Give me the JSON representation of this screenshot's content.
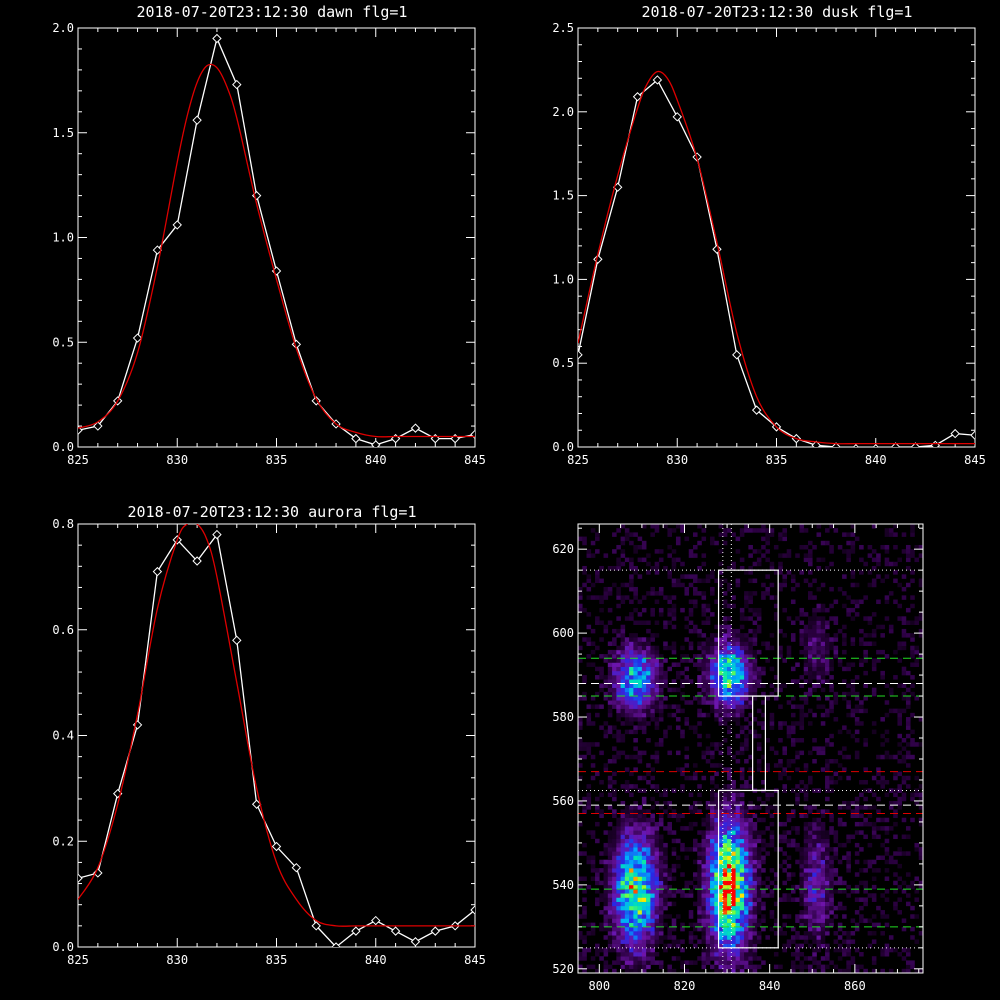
{
  "colors": {
    "background": "#000000",
    "axes": "#ffffff",
    "data": "#ffffff",
    "fit": "#dd0000"
  },
  "chart_data": [
    {
      "type": "line",
      "title": "2018-07-20T23:12:30 dawn flg=1",
      "xlim": [
        825,
        845
      ],
      "ylim": [
        0,
        2.0
      ],
      "xticks": [
        "825",
        "830",
        "835",
        "840",
        "845"
      ],
      "yticks": [
        "0.0",
        "0.5",
        "1.0",
        "1.5",
        "2.0"
      ],
      "ytick_values": [
        0,
        0.5,
        1.0,
        1.5,
        2.0
      ],
      "series": [
        {
          "marker": "diamond",
          "color": "#ffffff",
          "x": [
            825,
            826,
            827,
            828,
            829,
            830,
            831,
            832,
            833,
            834,
            835,
            836,
            837,
            838,
            839,
            840,
            841,
            842,
            843,
            844,
            845
          ],
          "y": [
            0.08,
            0.1,
            0.22,
            0.52,
            0.94,
            1.06,
            1.56,
            1.95,
            1.73,
            1.2,
            0.84,
            0.49,
            0.22,
            0.11,
            0.04,
            0.01,
            0.04,
            0.09,
            0.04,
            0.04,
            0.06
          ]
        },
        {
          "marker": "none",
          "color": "#dd0000",
          "x": [
            825,
            826,
            827,
            828,
            829,
            830,
            830.5,
            831,
            831.5,
            832,
            832.5,
            833,
            834,
            835,
            836,
            837,
            838,
            839,
            840,
            841,
            842,
            843,
            844,
            845
          ],
          "y": [
            0.09,
            0.12,
            0.22,
            0.45,
            0.86,
            1.36,
            1.58,
            1.74,
            1.82,
            1.81,
            1.72,
            1.57,
            1.16,
            0.8,
            0.47,
            0.23,
            0.11,
            0.07,
            0.05,
            0.05,
            0.05,
            0.05,
            0.05,
            0.05
          ]
        }
      ]
    },
    {
      "type": "line",
      "title": "2018-07-20T23:12:30 dusk flg=1",
      "xlim": [
        825,
        845
      ],
      "ylim": [
        0,
        2.5
      ],
      "xticks": [
        "825",
        "830",
        "835",
        "840",
        "845"
      ],
      "yticks": [
        "0.0",
        "0.5",
        "1.0",
        "1.5",
        "2.0",
        "2.5"
      ],
      "ytick_values": [
        0,
        0.5,
        1.0,
        1.5,
        2.0,
        2.5
      ],
      "series": [
        {
          "marker": "diamond",
          "color": "#ffffff",
          "x": [
            825,
            826,
            827,
            828,
            829,
            830,
            831,
            832,
            833,
            834,
            835,
            836,
            837,
            838,
            839,
            840,
            841,
            842,
            843,
            844,
            845
          ],
          "y": [
            0.55,
            1.12,
            1.55,
            2.09,
            2.19,
            1.97,
            1.73,
            1.18,
            0.55,
            0.22,
            0.12,
            0.05,
            0.01,
            0.0,
            -0.01,
            -0.01,
            0.0,
            0.0,
            0.01,
            0.08,
            0.07
          ]
        },
        {
          "marker": "none",
          "color": "#dd0000",
          "x": [
            825,
            826,
            827,
            828,
            828.5,
            829,
            829.5,
            830,
            831,
            832,
            833,
            834,
            835,
            836,
            837,
            838,
            839,
            840,
            841,
            842,
            843,
            844,
            845
          ],
          "y": [
            0.62,
            1.15,
            1.62,
            2.02,
            2.17,
            2.24,
            2.2,
            2.07,
            1.72,
            1.22,
            0.68,
            0.3,
            0.12,
            0.05,
            0.03,
            0.02,
            0.02,
            0.02,
            0.02,
            0.02,
            0.02,
            0.02,
            0.02
          ]
        }
      ]
    },
    {
      "type": "line",
      "title": "2018-07-20T23:12:30 aurora flg=1",
      "xlim": [
        825,
        845
      ],
      "ylim": [
        0,
        0.8
      ],
      "xticks": [
        "825",
        "830",
        "835",
        "840",
        "845"
      ],
      "yticks": [
        "0.0",
        "0.2",
        "0.4",
        "0.6",
        "0.8"
      ],
      "ytick_values": [
        0,
        0.2,
        0.4,
        0.6,
        0.8
      ],
      "series": [
        {
          "marker": "diamond",
          "color": "#ffffff",
          "x": [
            825,
            826,
            827,
            828,
            829,
            830,
            831,
            832,
            833,
            834,
            835,
            836,
            837,
            838,
            839,
            840,
            841,
            842,
            843,
            844,
            845
          ],
          "y": [
            0.13,
            0.14,
            0.29,
            0.42,
            0.71,
            0.77,
            0.73,
            0.78,
            0.58,
            0.27,
            0.19,
            0.15,
            0.04,
            0.0,
            0.03,
            0.05,
            0.03,
            0.01,
            0.03,
            0.04,
            0.07
          ]
        },
        {
          "marker": "none",
          "color": "#dd0000",
          "x": [
            825,
            826,
            827,
            828,
            829,
            830,
            830.5,
            831,
            831.5,
            832,
            833,
            834,
            835,
            836,
            837,
            838,
            839,
            840,
            841,
            842,
            843,
            844,
            845
          ],
          "y": [
            0.09,
            0.15,
            0.27,
            0.44,
            0.64,
            0.77,
            0.8,
            0.8,
            0.77,
            0.7,
            0.5,
            0.3,
            0.16,
            0.09,
            0.05,
            0.04,
            0.04,
            0.04,
            0.04,
            0.04,
            0.04,
            0.04,
            0.04
          ]
        }
      ]
    },
    {
      "type": "heatmap",
      "title": "",
      "xlim": [
        795,
        876
      ],
      "ylim": [
        519,
        626
      ],
      "xticks": [
        "800",
        "820",
        "840",
        "860"
      ],
      "xtick_values": [
        800,
        820,
        840,
        860
      ],
      "yticks": [
        "520",
        "540",
        "560",
        "580",
        "600",
        "620"
      ],
      "ytick_values": [
        520,
        540,
        560,
        580,
        600,
        620
      ],
      "emission_bands": [
        {
          "x_center": 808.5,
          "x_width": 3.5,
          "peaks": [
            {
              "y": 539,
              "sigma": 9,
              "amp": 0.75
            },
            {
              "y": 589,
              "sigma": 5,
              "amp": 0.55
            }
          ]
        },
        {
          "x_center": 830.5,
          "x_width": 3.2,
          "peaks": [
            {
              "y": 540,
              "sigma": 10,
              "amp": 1.0
            },
            {
              "y": 590,
              "sigma": 5,
              "amp": 0.7
            }
          ]
        },
        {
          "x_center": 851,
          "x_width": 2.5,
          "peaks": [
            {
              "y": 540,
              "sigma": 9,
              "amp": 0.25
            },
            {
              "y": 596,
              "sigma": 6,
              "amp": 0.15
            }
          ]
        }
      ],
      "lines": {
        "green_dashed_y": [
          594,
          585,
          539,
          530
        ],
        "white_dashed_y": [
          588,
          559
        ],
        "red_dashed_y": [
          567,
          557
        ],
        "dotted_y": [
          615,
          562.5,
          525
        ],
        "dotted_x": [
          829,
          831
        ]
      },
      "boxes": [
        {
          "x": [
            828,
            842
          ],
          "y": [
            585,
            615
          ]
        },
        {
          "x": [
            836,
            839
          ],
          "y": [
            562.5,
            585
          ]
        },
        {
          "x": [
            828,
            842
          ],
          "y": [
            525,
            562.5
          ]
        }
      ]
    }
  ]
}
